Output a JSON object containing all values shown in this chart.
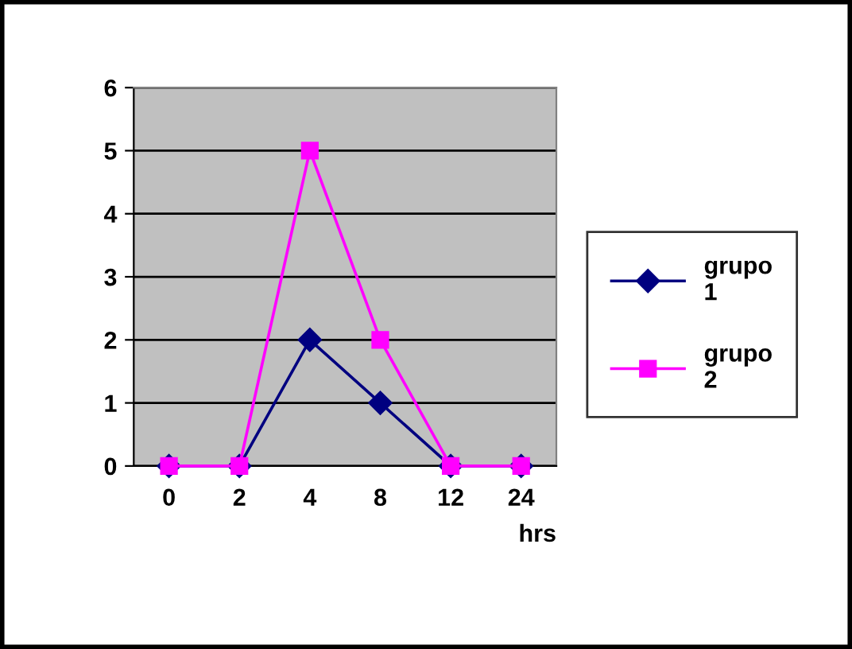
{
  "chart_data": {
    "type": "line",
    "categories": [
      "0",
      "2",
      "4",
      "8",
      "12",
      "24"
    ],
    "xlabel": "hrs",
    "series": [
      {
        "name": "grupo 1",
        "color": "#000080",
        "values": [
          0,
          0,
          2,
          1,
          0,
          0
        ],
        "marker": "diamond"
      },
      {
        "name": "grupo 2",
        "color": "#ff00ff",
        "values": [
          0,
          0,
          5,
          2,
          0,
          0
        ],
        "marker": "square"
      }
    ],
    "ylim": [
      0,
      6
    ],
    "yticks": [
      0,
      1,
      2,
      3,
      4,
      5,
      6
    ],
    "grid": "y",
    "legend": "right",
    "line_style": "solid"
  }
}
